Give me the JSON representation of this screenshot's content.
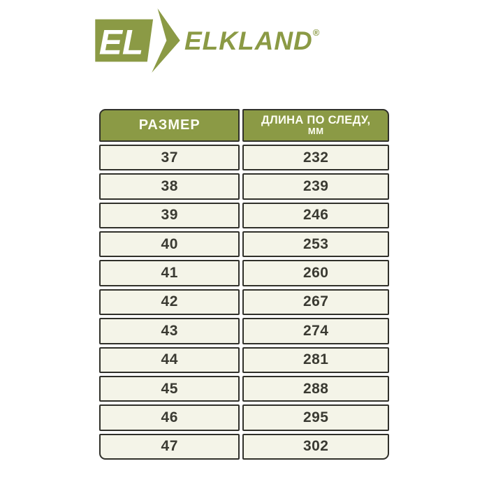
{
  "brand": {
    "logo_letters": "EL",
    "name": "ELKLAND",
    "registered_mark": "®"
  },
  "table": {
    "header": {
      "size_label": "РАЗМЕР",
      "length_label": "ДЛИНА ПО СЛЕДУ,",
      "length_unit": "ММ"
    },
    "rows": [
      {
        "size": "37",
        "length": "232"
      },
      {
        "size": "38",
        "length": "239"
      },
      {
        "size": "39",
        "length": "246"
      },
      {
        "size": "40",
        "length": "253"
      },
      {
        "size": "41",
        "length": "260"
      },
      {
        "size": "42",
        "length": "267"
      },
      {
        "size": "43",
        "length": "274"
      },
      {
        "size": "44",
        "length": "281"
      },
      {
        "size": "45",
        "length": "288"
      },
      {
        "size": "46",
        "length": "295"
      },
      {
        "size": "47",
        "length": "302"
      }
    ]
  },
  "colors": {
    "brand_green": "#8B9A45",
    "cell_background": "#F4F4E8",
    "border_dark": "#30302A",
    "cell_text": "#3A3A32",
    "header_text": "#FDFDF3",
    "page_background": "#FFFFFF"
  },
  "chart_data": {
    "type": "table",
    "title": "",
    "columns": [
      "РАЗМЕР",
      "ДЛИНА ПО СЛЕДУ, ММ"
    ],
    "rows": [
      [
        37,
        232
      ],
      [
        38,
        239
      ],
      [
        39,
        246
      ],
      [
        40,
        253
      ],
      [
        41,
        260
      ],
      [
        42,
        267
      ],
      [
        43,
        274
      ],
      [
        44,
        281
      ],
      [
        45,
        288
      ],
      [
        46,
        295
      ],
      [
        47,
        302
      ]
    ]
  }
}
